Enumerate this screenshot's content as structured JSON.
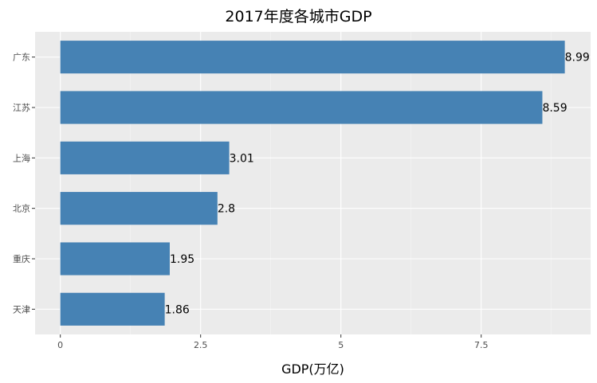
{
  "chart_data": {
    "type": "bar",
    "orientation": "horizontal",
    "title": "2017年度各城市GDP",
    "xlabel": "GDP(万亿)",
    "ylabel": "",
    "categories": [
      "广东",
      "江苏",
      "上海",
      "北京",
      "重庆",
      "天津"
    ],
    "values": [
      8.99,
      8.59,
      3.01,
      2.8,
      1.95,
      1.86
    ],
    "value_labels": [
      "8.99",
      "8.59",
      "3.01",
      "2.8",
      "1.95",
      "1.86"
    ],
    "x_ticks": [
      0,
      2.5,
      5,
      7.5
    ],
    "x_tick_labels": [
      "0",
      "2.5",
      "5",
      "7.5"
    ],
    "xlim": [
      -0.45,
      9.45
    ],
    "grid": true,
    "legend": "none",
    "colors": {
      "bar": "#4682B4",
      "panel": "#EBEBEB",
      "grid_major": "#FFFFFF",
      "grid_minor": "#F5F5F5",
      "tick": "#333333"
    }
  }
}
